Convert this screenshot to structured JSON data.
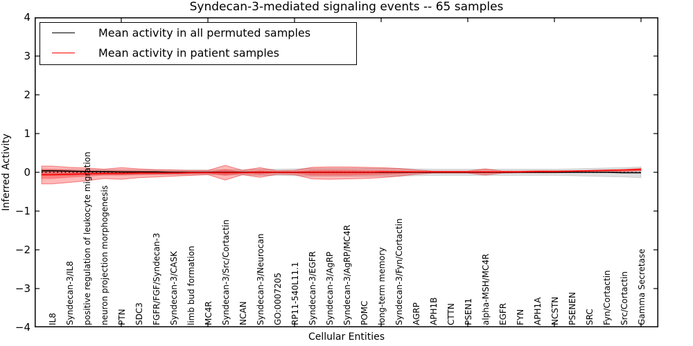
{
  "title": "Syndecan-3-mediated signaling events -- 65 samples",
  "x_axis_label": "Cellular Entities",
  "y_axis_label": "Inferred Activity",
  "legend": {
    "items": [
      {
        "label": "Mean activity in all permuted samples",
        "color": "#000000"
      },
      {
        "label": "Mean activity in patient samples",
        "color": "#ff0000"
      }
    ],
    "position": "upper left"
  },
  "y_ticks": [
    {
      "label": "4",
      "value": 4
    },
    {
      "label": "3",
      "value": 3
    },
    {
      "label": "2",
      "value": 2
    },
    {
      "label": "1",
      "value": 1
    },
    {
      "label": "0",
      "value": 0
    },
    {
      "label": "−1",
      "value": -1
    },
    {
      "label": "−2",
      "value": -2
    },
    {
      "label": "−3",
      "value": -3
    },
    {
      "label": "−4",
      "value": -4
    }
  ],
  "chart_data": {
    "type": "line",
    "title": "Syndecan-3-mediated signaling events -- 65 samples",
    "xlabel": "Cellular Entities",
    "ylabel": "Inferred Activity",
    "xlim": [
      0,
      36
    ],
    "ylim": [
      -4,
      4
    ],
    "grid": false,
    "legend_position": "upper left",
    "x_major_ticks": [
      5,
      10,
      15,
      20,
      25,
      30,
      35
    ],
    "categories": [
      "IL8",
      "Syndecan-3/IL8",
      "positive regulation of leukocyte migration",
      "neuron projection morphogenesis",
      "PTN",
      "SDC3",
      "FGFR/FGF/Syndecan-3",
      "Syndecan-3/CASK",
      "limb bud formation",
      "MC4R",
      "Syndecan-3/Src/Cortactin",
      "NCAN",
      "Syndecan-3/Neurocan",
      "GO:0007205",
      "RP11-540L11.1",
      "Syndecan-3/EGFR",
      "Syndecan-3/AgRP",
      "Syndecan-3/AgRP/MC4R",
      "POMC",
      "long-term memory",
      "Syndecan-3/Fyn/Cortactin",
      "AGRP",
      "APH1B",
      "CTTN",
      "PSEN1",
      "alpha-MSH/MC4R",
      "EGFR",
      "FYN",
      "APH1A",
      "NCSTN",
      "PSENEN",
      "SRC",
      "Fyn/Cortactin",
      "Src/Cortactin",
      "Gamma Secretase"
    ],
    "x": [
      0.4,
      1,
      2,
      3,
      4,
      5,
      6,
      7,
      8,
      9,
      10,
      11,
      12,
      13,
      14,
      15,
      16,
      17,
      18,
      19,
      20,
      21,
      22,
      23,
      24,
      25,
      26,
      27,
      28,
      29,
      30,
      31,
      32,
      33,
      34,
      35
    ],
    "bands": [
      {
        "name": "permuted-samples-band",
        "fill": "rgba(110,110,110,0.22)",
        "stroke": "rgba(0,0,0,0.12)",
        "upper": [
          0.08,
          0.08,
          0.08,
          0.07,
          0.07,
          0.07,
          0.06,
          0.06,
          0.06,
          0.06,
          0.06,
          0.07,
          0.07,
          0.08,
          0.08,
          0.09,
          0.1,
          0.1,
          0.1,
          0.1,
          0.1,
          0.1,
          0.09,
          0.08,
          0.08,
          0.08,
          0.08,
          0.08,
          0.08,
          0.08,
          0.08,
          0.09,
          0.1,
          0.11,
          0.12,
          0.14
        ],
        "lower": [
          -0.08,
          -0.08,
          -0.08,
          -0.07,
          -0.07,
          -0.07,
          -0.06,
          -0.06,
          -0.06,
          -0.06,
          -0.06,
          -0.07,
          -0.07,
          -0.08,
          -0.08,
          -0.09,
          -0.1,
          -0.1,
          -0.1,
          -0.1,
          -0.1,
          -0.1,
          -0.09,
          -0.08,
          -0.08,
          -0.08,
          -0.08,
          -0.08,
          -0.08,
          -0.08,
          -0.08,
          -0.09,
          -0.1,
          -0.11,
          -0.12,
          -0.14
        ]
      },
      {
        "name": "patient-samples-band-outer",
        "fill": "rgba(255,0,0,0.28)",
        "stroke": "rgba(230,0,0,0.45)",
        "upper": [
          0.16,
          0.16,
          0.13,
          0.11,
          0.08,
          0.12,
          0.09,
          0.07,
          0.06,
          0.05,
          0.05,
          0.18,
          0.05,
          0.12,
          0.04,
          0.05,
          0.13,
          0.14,
          0.14,
          0.13,
          0.12,
          0.1,
          0.06,
          0.03,
          0.03,
          0.03,
          0.09,
          0.03,
          0.03,
          0.04,
          0.04,
          0.04,
          0.05,
          0.06,
          0.07,
          0.1
        ],
        "lower": [
          -0.3,
          -0.3,
          -0.26,
          -0.22,
          -0.16,
          -0.18,
          -0.14,
          -0.12,
          -0.1,
          -0.08,
          -0.06,
          -0.2,
          -0.06,
          -0.13,
          -0.05,
          -0.06,
          -0.17,
          -0.18,
          -0.17,
          -0.16,
          -0.14,
          -0.1,
          -0.05,
          -0.02,
          -0.02,
          -0.02,
          -0.07,
          -0.02,
          -0.01,
          -0.01,
          -0.01,
          0,
          0,
          0.01,
          0.02,
          0.04
        ]
      },
      {
        "name": "patient-samples-band-inner",
        "fill": "rgba(255,0,0,0.30)",
        "stroke": "none",
        "upper": [
          0.08,
          0.08,
          0.06,
          0.05,
          0.04,
          0.05,
          0.04,
          0.03,
          0.03,
          0.02,
          0.02,
          0.08,
          0.02,
          0.05,
          0.02,
          0.02,
          0.06,
          0.06,
          0.06,
          0.05,
          0.05,
          0.04,
          0.03,
          0.02,
          0.02,
          0.02,
          0.04,
          0.02,
          0.02,
          0.02,
          0.03,
          0.03,
          0.04,
          0.04,
          0.05,
          0.08
        ],
        "lower": [
          -0.17,
          -0.17,
          -0.14,
          -0.11,
          -0.08,
          -0.08,
          -0.07,
          -0.06,
          -0.05,
          -0.04,
          -0.03,
          -0.09,
          -0.03,
          -0.06,
          -0.02,
          -0.03,
          -0.08,
          -0.08,
          -0.08,
          -0.07,
          -0.06,
          -0.05,
          -0.02,
          -0.01,
          -0.01,
          -0.01,
          -0.03,
          -0.01,
          0,
          0,
          0.01,
          0.01,
          0.02,
          0.03,
          0.04,
          0.05
        ]
      }
    ],
    "series": [
      {
        "name": "Mean activity in all permuted samples",
        "color": "#000000",
        "style": "solid",
        "values": [
          0.04,
          0.04,
          0.03,
          0.02,
          0.02,
          0.01,
          0.01,
          0.01,
          0,
          0,
          0,
          0,
          0,
          0,
          0,
          0,
          0,
          0,
          0,
          0,
          0,
          0,
          0,
          0,
          0,
          0,
          0,
          0,
          0,
          0,
          0,
          0,
          0,
          0,
          -0.01,
          -0.01
        ]
      },
      {
        "name": "Mean activity in patient samples",
        "color": "#ff0000",
        "style": "solid",
        "values": [
          -0.06,
          -0.06,
          -0.05,
          -0.04,
          -0.03,
          -0.03,
          -0.02,
          -0.02,
          -0.02,
          -0.01,
          -0.01,
          -0.01,
          -0.01,
          0,
          0,
          0,
          0,
          0,
          0,
          0,
          0.01,
          0.01,
          0.01,
          0.01,
          0.01,
          0.01,
          0.01,
          0.01,
          0.01,
          0.02,
          0.02,
          0.03,
          0.04,
          0.05,
          0.06,
          0.07
        ]
      },
      {
        "name": "zero-reference",
        "color": "#000000",
        "style": "dotted",
        "values": [
          0,
          0,
          0,
          0,
          0,
          0,
          0,
          0,
          0,
          0,
          0,
          0,
          0,
          0,
          0,
          0,
          0,
          0,
          0,
          0,
          0,
          0,
          0,
          0,
          0,
          0,
          0,
          0,
          0,
          0,
          0,
          0,
          0,
          0,
          0,
          0
        ]
      }
    ]
  }
}
